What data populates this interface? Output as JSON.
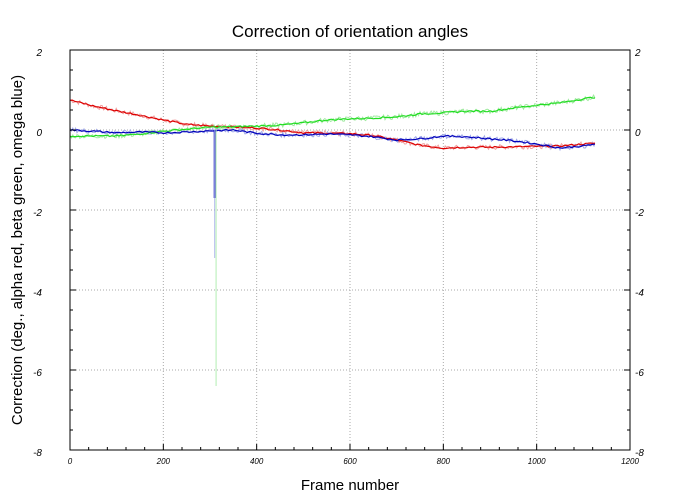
{
  "chart_data": {
    "type": "line",
    "title": "Correction of orientation angles",
    "xlabel": "Frame number",
    "ylabel": "Correction (deg., alpha red, beta green, omega blue)",
    "xlim": [
      0,
      1200
    ],
    "ylim": [
      -8,
      2
    ],
    "x_ticks": [
      "0",
      "200",
      "400",
      "600",
      "800",
      "1000",
      "1200"
    ],
    "y_ticks": [
      "-8",
      "-6",
      "-4",
      "-2",
      "0",
      "2"
    ],
    "y_ticks_right": [
      "-8",
      "-6",
      "-4",
      "-2",
      "0",
      "2"
    ],
    "grid": true,
    "colors": {
      "alpha_smooth": "#dd0000",
      "alpha_raw": "#f0a0a0",
      "beta_smooth": "#22dd22",
      "beta_raw": "#a0eaa0",
      "omega_smooth": "#0000bb",
      "omega_raw": "#a0a8e8",
      "grid": "#aaaaaa"
    },
    "series": [
      {
        "name": "alpha",
        "x": [
          0,
          50,
          100,
          150,
          200,
          250,
          300,
          350,
          400,
          450,
          500,
          550,
          600,
          650,
          700,
          750,
          800,
          850,
          900,
          950,
          1000,
          1050,
          1100,
          1125
        ],
        "values": [
          0.75,
          0.6,
          0.48,
          0.37,
          0.25,
          0.14,
          0.1,
          0.08,
          0.05,
          0.0,
          -0.07,
          -0.08,
          -0.09,
          -0.14,
          -0.25,
          -0.38,
          -0.45,
          -0.43,
          -0.43,
          -0.42,
          -0.41,
          -0.4,
          -0.35,
          -0.33
        ]
      },
      {
        "name": "beta",
        "x": [
          0,
          50,
          100,
          150,
          200,
          250,
          300,
          350,
          400,
          450,
          500,
          550,
          600,
          650,
          700,
          750,
          800,
          850,
          900,
          950,
          1000,
          1050,
          1100,
          1125
        ],
        "values": [
          -0.15,
          -0.15,
          -0.15,
          -0.1,
          -0.03,
          0.02,
          0.07,
          0.08,
          0.1,
          0.12,
          0.18,
          0.25,
          0.28,
          0.3,
          0.33,
          0.4,
          0.43,
          0.47,
          0.47,
          0.55,
          0.62,
          0.68,
          0.78,
          0.82
        ]
      },
      {
        "name": "omega",
        "x": [
          0,
          50,
          100,
          150,
          200,
          250,
          300,
          350,
          400,
          450,
          500,
          550,
          600,
          650,
          700,
          750,
          800,
          850,
          900,
          950,
          1000,
          1050,
          1100,
          1125
        ],
        "values": [
          0.0,
          -0.03,
          -0.07,
          -0.05,
          -0.07,
          -0.05,
          -0.02,
          0.0,
          -0.08,
          -0.12,
          -0.12,
          -0.1,
          -0.12,
          -0.17,
          -0.25,
          -0.22,
          -0.15,
          -0.17,
          -0.22,
          -0.27,
          -0.35,
          -0.45,
          -0.4,
          -0.35
        ]
      }
    ],
    "spikes": [
      {
        "series": "omega",
        "x": 310,
        "values": [
          -1.7,
          -3.2
        ]
      },
      {
        "series": "beta",
        "x": 313,
        "values": [
          -6.4
        ]
      }
    ]
  }
}
